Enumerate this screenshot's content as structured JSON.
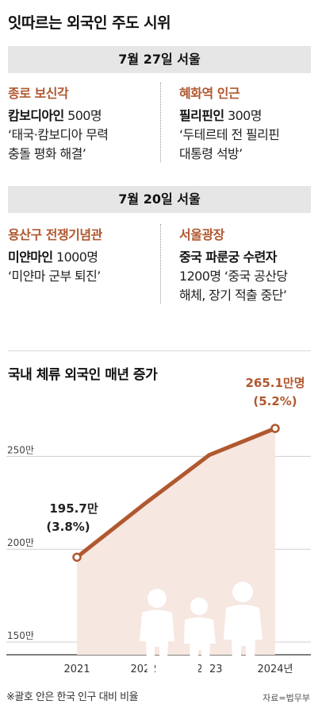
{
  "title": "잇따르는 외국인 주도 시위",
  "sections": [
    {
      "date": "7월 27일 서울",
      "cards": [
        {
          "location": "종로 보신각",
          "group": "캄보디아인",
          "count": "500명",
          "demand_lines": [
            "‘태국·캄보디아 무력",
            "충돌 평화 해결’"
          ]
        },
        {
          "location": "혜화역 인근",
          "group": "필리핀인",
          "count": "300명",
          "demand_lines": [
            "‘두테르테 전 필리핀",
            "대통령 석방’"
          ]
        }
      ]
    },
    {
      "date": "7월 20일 서울",
      "cards": [
        {
          "location": "용산구 전쟁기념관",
          "group": "미얀마인",
          "count": "1000명",
          "demand_lines": [
            "‘미얀마 군부 퇴진’"
          ]
        },
        {
          "location": "서울광장",
          "group": "중국 파룬궁 수련자",
          "count": "",
          "demand_lines": [
            "1200명 ‘중국 공산당",
            "해체, 장기 적출 중단’"
          ]
        }
      ]
    }
  ],
  "chart_data": {
    "type": "area",
    "title": "국내 체류 외국인 매년 증가",
    "x": [
      "2021",
      "2022",
      "2023",
      "2024년"
    ],
    "values": [
      195.7,
      224,
      250.8,
      265.1
    ],
    "y_ticks": [
      150,
      200,
      250
    ],
    "y_tick_labels": [
      "150만",
      "200만",
      "250만"
    ],
    "ylim": [
      150,
      275
    ],
    "grid": true,
    "annotations": [
      {
        "index": 0,
        "value_label": "195.7만",
        "pct_label": "(3.8%)"
      },
      {
        "index": 3,
        "value_label": "265.1만명",
        "pct_label": "(5.2%)"
      }
    ],
    "line_color": "#b0582f",
    "fill_color": "#f6e7e1",
    "highlight_color": "#b0582f"
  },
  "footnote": "※괄호 안은 한국 인구 대비 비율",
  "source": "자료=법무부"
}
